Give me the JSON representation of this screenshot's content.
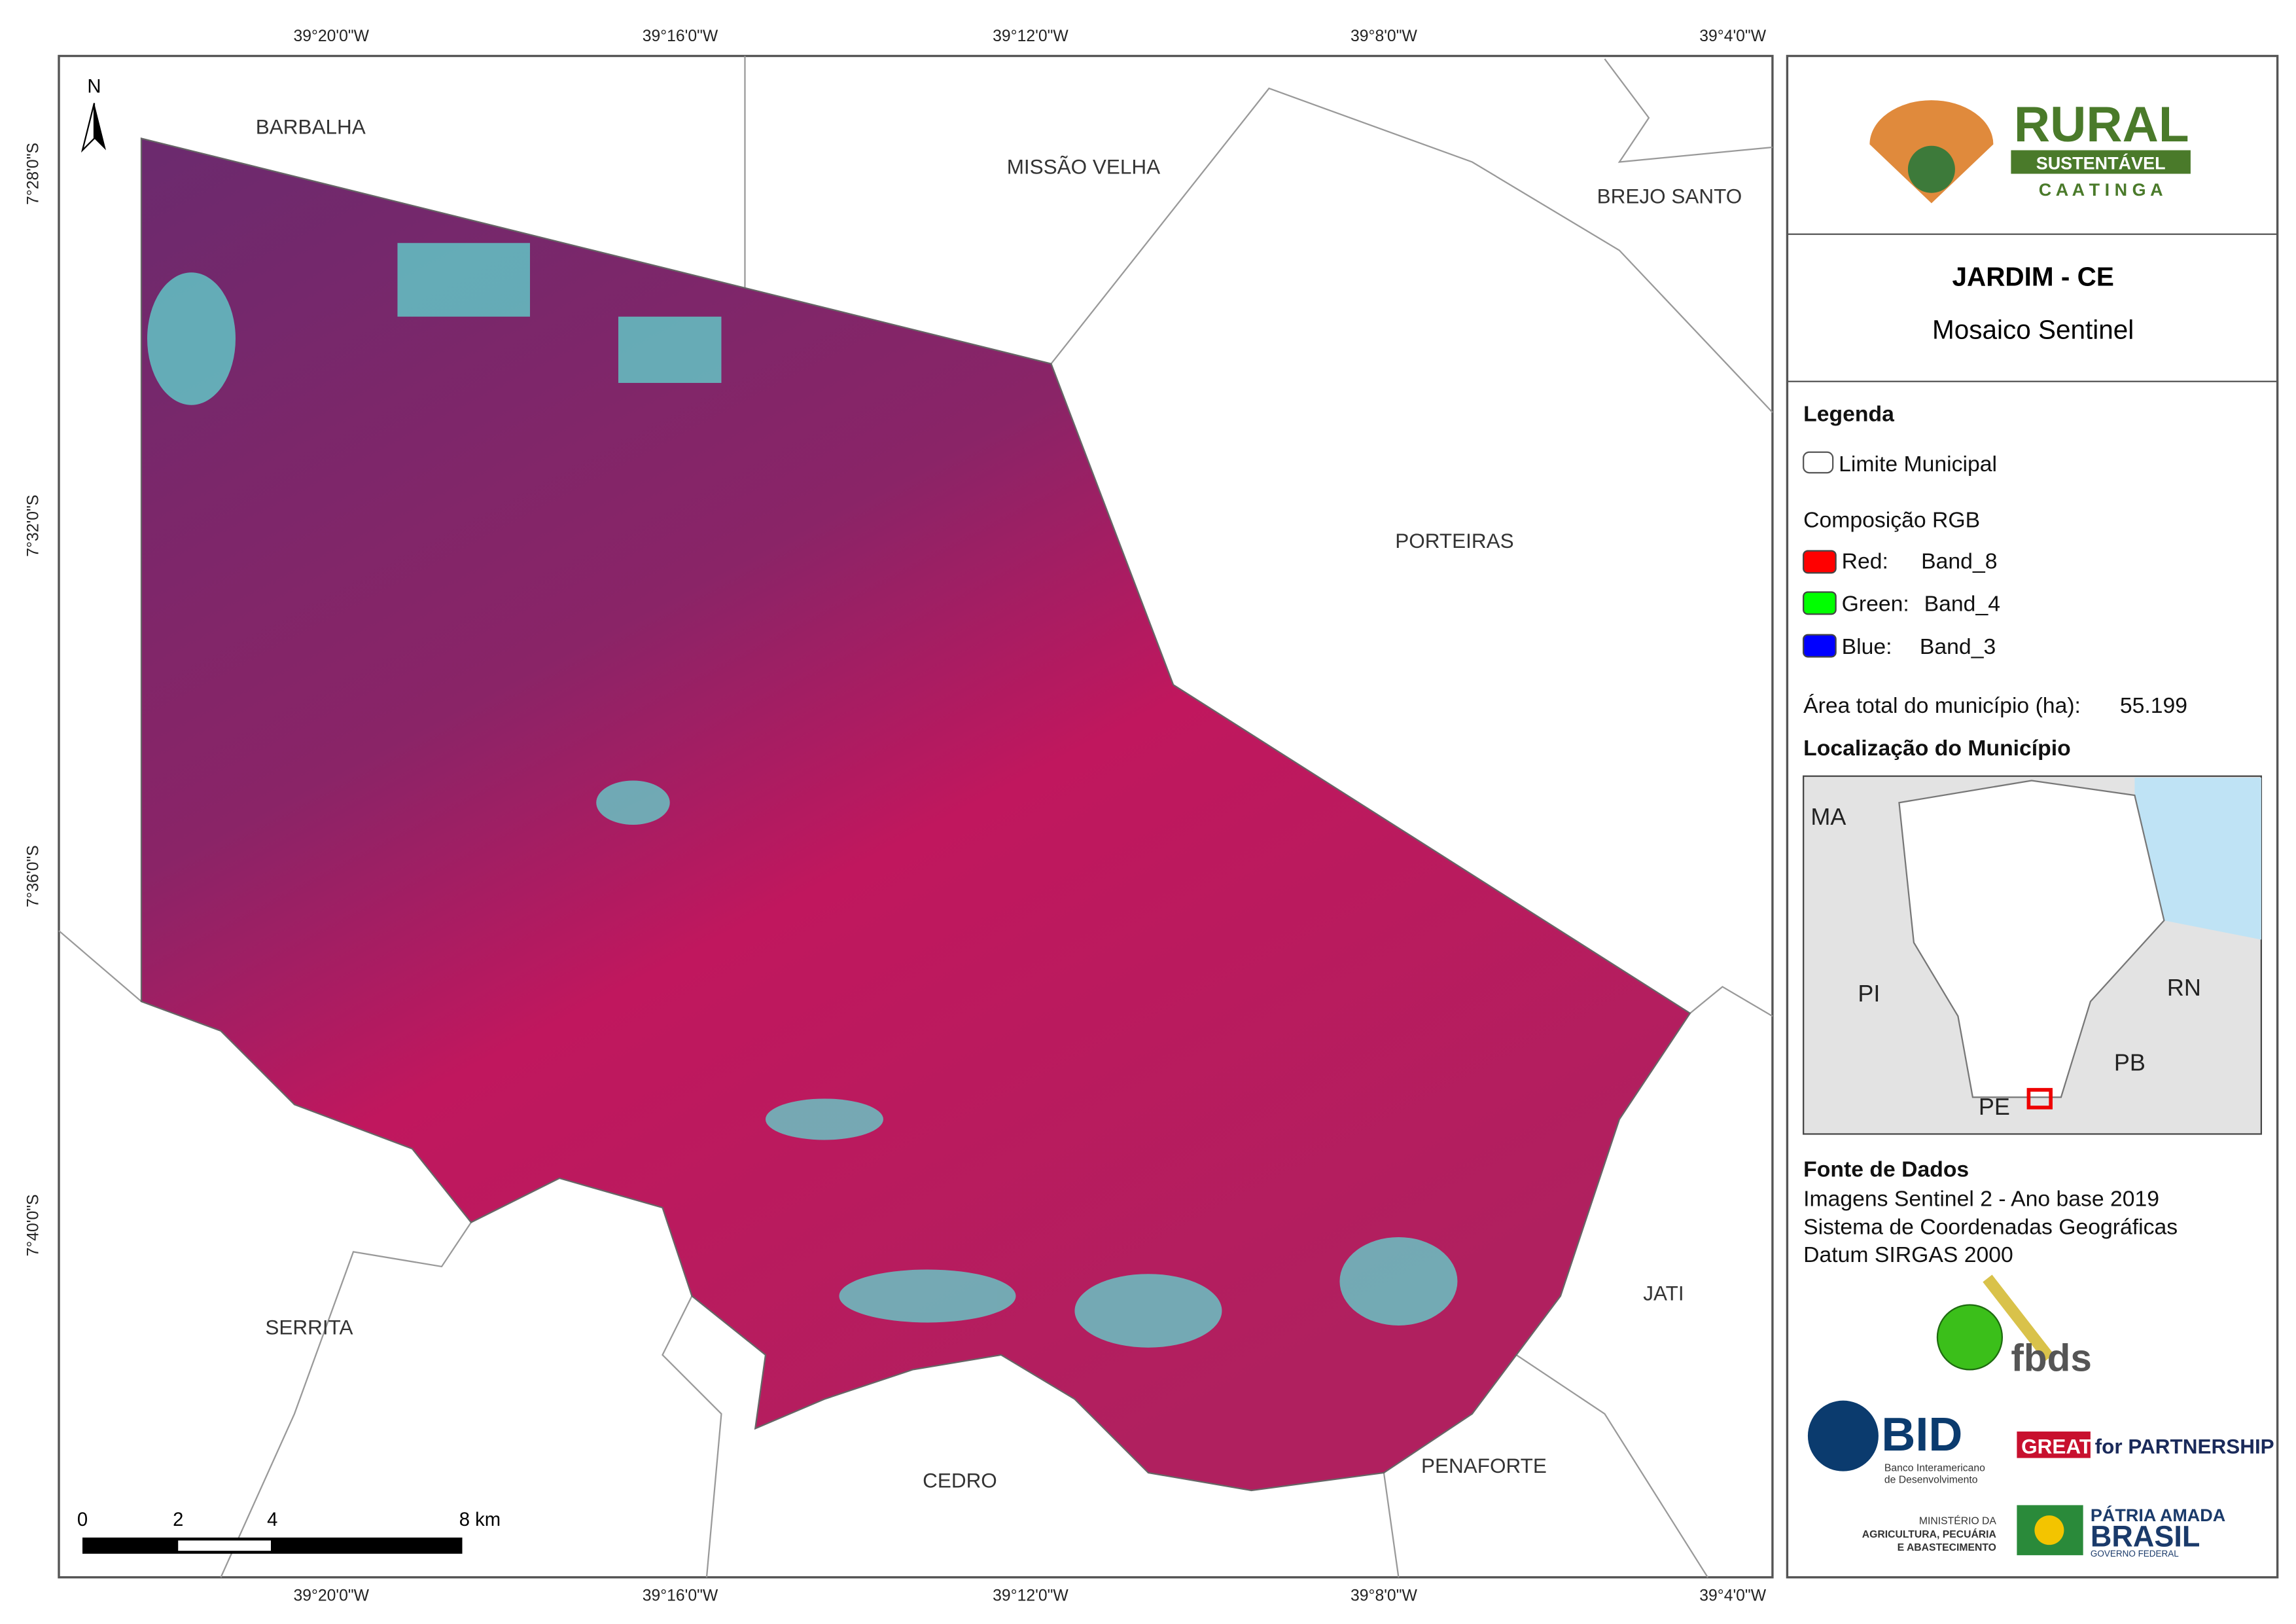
{
  "map": {
    "top_coordinates": [
      "39°20'0\"W",
      "39°16'0\"W",
      "39°12'0\"W",
      "39°8'0\"W",
      "39°4'0\"W"
    ],
    "bottom_coordinates": [
      "39°20'0\"W",
      "39°16'0\"W",
      "39°12'0\"W",
      "39°8'0\"W",
      "39°4'0\"W"
    ],
    "left_coordinates": [
      "7°28'0\"S",
      "7°32'0\"S",
      "7°36'0\"S",
      "7°40'0\"S"
    ],
    "north": "N",
    "municipalities": [
      "BARBALHA",
      "MISSÃO VELHA",
      "BREJO SANTO",
      "PORTEIRAS",
      "JATI",
      "PENAFORTE",
      "CEDRO",
      "SERRITA"
    ],
    "scale_bar": [
      "0",
      "2",
      "4",
      "8 km"
    ]
  },
  "panel": {
    "logo": {
      "rural": "RURAL",
      "sustentavel": "SUSTENTÁVEL",
      "caatinga": "C A A T I N G A"
    },
    "title": "JARDIM - CE",
    "subtitle": "Mosaico Sentinel",
    "legend": {
      "heading": "Legenda",
      "boundary": "Limite Municipal",
      "composition": "Composição RGB",
      "bands": [
        {
          "channel": "Red:",
          "band": "Band_8"
        },
        {
          "channel": "Green:",
          "band": "Band_4"
        },
        {
          "channel": "Blue:",
          "band": "Band_3"
        }
      ],
      "area_label": "Área total do município (ha):",
      "area_value": "55.199"
    },
    "location": {
      "heading": "Localização do Município",
      "labels": [
        "MA",
        "PI",
        "RN",
        "PB",
        "PE"
      ]
    },
    "sources": {
      "heading": "Fonte de Dados",
      "lines": [
        "Imagens Sentinel 2 - Ano base 2019",
        "Sistema de Coordenadas Geográficas",
        "Datum SIRGAS 2000"
      ]
    },
    "partners": {
      "fbds": "fbds",
      "bid": "BID",
      "bid_name": [
        "Banco Interamericano",
        "de Desenvolvimento"
      ],
      "great": "GREAT",
      "partnership": "for PARTNERSHIP",
      "ministry": [
        "MINISTÉRIO DA",
        "AGRICULTURA, PECUÁRIA",
        "E ABASTECIMENTO"
      ],
      "brasil": [
        "PÁTRIA AMADA",
        "BRASIL",
        "GOVERNO FEDERAL"
      ]
    }
  }
}
